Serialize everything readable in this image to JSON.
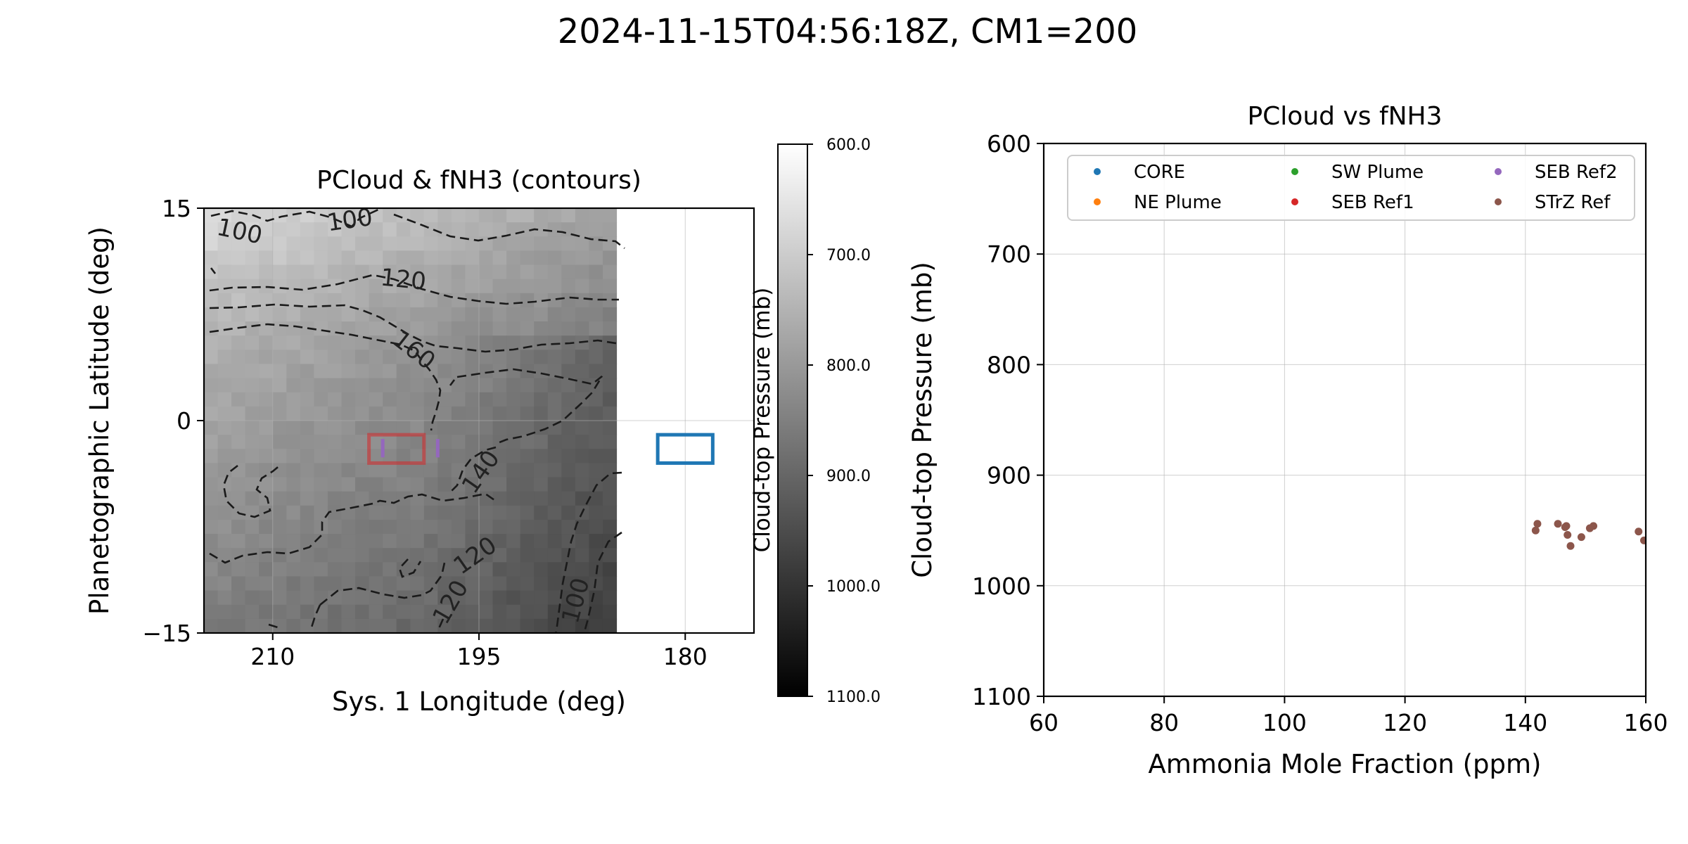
{
  "figure": {
    "suptitle": "2024-11-15T04:56:18Z, CM1=200"
  },
  "chart_data": [
    {
      "type": "heatmap",
      "title": "PCloud & fNH3 (contours)",
      "xlabel": "Sys. 1 Longitude (deg)",
      "ylabel": "Planetographic Latitude (deg)",
      "xlim": [
        215,
        175
      ],
      "ylim": [
        -15,
        15
      ],
      "xticks": [
        {
          "value": 210,
          "label": "210"
        },
        {
          "value": 195,
          "label": "195"
        },
        {
          "value": 180,
          "label": "180"
        }
      ],
      "yticks": [
        {
          "value": 15,
          "label": "15"
        },
        {
          "value": 0,
          "label": "0"
        },
        {
          "value": -15,
          "label": "−15"
        }
      ],
      "map_extent_lon": [
        215,
        185
      ],
      "colorbar": {
        "label": "Cloud-top Pressure (mb)",
        "range": [
          600,
          1100
        ],
        "ticks": [
          {
            "value": 600,
            "label": "600.0"
          },
          {
            "value": 700,
            "label": "700.0"
          },
          {
            "value": 800,
            "label": "800.0"
          },
          {
            "value": 900,
            "label": "900.0"
          },
          {
            "value": 1000,
            "label": "1000.0"
          },
          {
            "value": 1100,
            "label": "1100.0"
          }
        ]
      },
      "contour_labels": [
        {
          "text": "100",
          "lon": 212.4,
          "lat": 13.4,
          "rot": 12
        },
        {
          "text": "100",
          "lon": 204.4,
          "lat": 14.2,
          "rot": -8
        },
        {
          "text": "120",
          "lon": 200.5,
          "lat": 10.0,
          "rot": 6
        },
        {
          "text": "160",
          "lon": 199.7,
          "lat": 5.0,
          "rot": 38
        },
        {
          "text": "140",
          "lon": 194.9,
          "lat": -3.6,
          "rot": -55
        },
        {
          "text": "120",
          "lon": 195.3,
          "lat": -9.5,
          "rot": -35
        },
        {
          "text": "120",
          "lon": 197.1,
          "lat": -12.8,
          "rot": -60
        },
        {
          "text": "100",
          "lon": 188.0,
          "lat": -12.7,
          "rot": -75
        }
      ],
      "regions": [
        {
          "name": "SEB Ref1",
          "lon_min": 199,
          "lon_max": 203,
          "lat_min": -3,
          "lat_max": -1,
          "color": "#d62728"
        },
        {
          "name": "SEB Ref2 A",
          "lon_min": 202,
          "lon_max": 202,
          "lat_min": -2.6,
          "lat_max": -1.3,
          "color": "#9467bd"
        },
        {
          "name": "SEB Ref2 B",
          "lon_min": 198,
          "lon_max": 198,
          "lat_min": -2.6,
          "lat_max": -1.3,
          "color": "#9467bd"
        },
        {
          "name": "STrZ box",
          "lon_min": 178,
          "lon_max": 182,
          "lat_min": -3,
          "lat_max": -1,
          "color": "#1f77b4"
        }
      ]
    },
    {
      "type": "scatter",
      "title": "PCloud vs fNH3",
      "xlabel": "Ammonia Mole Fraction (ppm)",
      "ylabel": "Cloud-top Pressure (mb)",
      "xlim": [
        60,
        160
      ],
      "ylim": [
        1100,
        600
      ],
      "xticks": [
        60,
        80,
        100,
        120,
        140,
        160
      ],
      "yticks": [
        600,
        700,
        800,
        900,
        1000,
        1100
      ],
      "grid": true,
      "legend_position": "top",
      "series": [
        {
          "name": "CORE",
          "color": "#1f77b4",
          "points": []
        },
        {
          "name": "NE Plume",
          "color": "#ff7f0e",
          "points": []
        },
        {
          "name": "SW Plume",
          "color": "#2ca02c",
          "points": []
        },
        {
          "name": "SEB Ref1",
          "color": "#d62728",
          "points": []
        },
        {
          "name": "SEB Ref2",
          "color": "#9467bd",
          "points": []
        },
        {
          "name": "STrZ Ref",
          "color": "#8c564b",
          "points": [
            [
              141.7,
              950
            ],
            [
              142.0,
              944
            ],
            [
              145.4,
              944
            ],
            [
              146.6,
              947
            ],
            [
              146.8,
              946
            ],
            [
              147.0,
              954
            ],
            [
              147.5,
              964
            ],
            [
              149.3,
              956
            ],
            [
              150.7,
              948
            ],
            [
              151.3,
              946
            ],
            [
              158.8,
              951
            ],
            [
              159.7,
              959
            ]
          ]
        }
      ]
    }
  ]
}
